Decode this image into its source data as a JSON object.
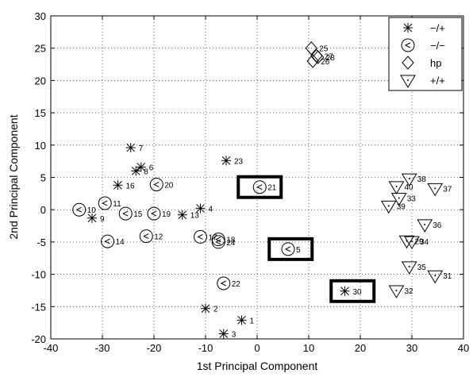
{
  "chart_data": {
    "type": "scatter",
    "title": "",
    "xlabel": "1st Principal Component",
    "ylabel": "2nd Principal Component",
    "xlim": [
      -40,
      40
    ],
    "ylim": [
      -20,
      30
    ],
    "xticks": [
      "-40",
      "-30",
      "-20",
      "-10",
      "0",
      "10",
      "20",
      "30",
      "40"
    ],
    "yticks": [
      "-20",
      "-15",
      "-10",
      "-5",
      "0",
      "5",
      "10",
      "15",
      "20",
      "25",
      "30"
    ],
    "grid": true,
    "legend_position": "top-right",
    "series": [
      {
        "name": "−/+",
        "marker": "x",
        "points": [
          {
            "x": -6.5,
            "y": -19.2,
            "label": "3"
          },
          {
            "x": -10,
            "y": -15.3,
            "label": "2"
          },
          {
            "x": -3,
            "y": -17.1,
            "label": "1"
          },
          {
            "x": -32,
            "y": -1.3,
            "label": "9"
          },
          {
            "x": -14.5,
            "y": -0.8,
            "label": "13"
          },
          {
            "x": -11,
            "y": 0.2,
            "label": "4"
          },
          {
            "x": -27,
            "y": 3.8,
            "label": "16"
          },
          {
            "x": -23.5,
            "y": 6,
            "label": "8"
          },
          {
            "x": -22.5,
            "y": 6.6,
            "label": "6"
          },
          {
            "x": -24.5,
            "y": 9.6,
            "label": "7"
          },
          {
            "x": -6,
            "y": 7.6,
            "label": "23"
          },
          {
            "x": 17,
            "y": -12.6,
            "label": "30"
          }
        ]
      },
      {
        "name": "−/−",
        "marker": "o",
        "points": [
          {
            "x": -34.5,
            "y": 0,
            "label": "10"
          },
          {
            "x": -29.5,
            "y": 1,
            "label": "11"
          },
          {
            "x": -25.5,
            "y": -0.6,
            "label": "15"
          },
          {
            "x": -20,
            "y": -0.6,
            "label": "19"
          },
          {
            "x": -19.5,
            "y": 3.9,
            "label": "20"
          },
          {
            "x": -21.5,
            "y": -4.1,
            "label": "12"
          },
          {
            "x": -29,
            "y": -4.9,
            "label": "14"
          },
          {
            "x": -11,
            "y": -4.2,
            "label": "17"
          },
          {
            "x": -7.5,
            "y": -4.6,
            "label": "18"
          },
          {
            "x": -7.5,
            "y": -5,
            "label": "24"
          },
          {
            "x": -6.5,
            "y": -11.4,
            "label": "22"
          },
          {
            "x": 0.5,
            "y": 3.5,
            "label": "21"
          },
          {
            "x": 6,
            "y": -6.1,
            "label": "5"
          }
        ]
      },
      {
        "name": "hp",
        "marker": "diamond",
        "points": [
          {
            "x": 10.5,
            "y": 25,
            "label": "25"
          },
          {
            "x": 11.5,
            "y": 23.8,
            "label": "27"
          },
          {
            "x": 11.8,
            "y": 23.6,
            "label": "28"
          },
          {
            "x": 10.8,
            "y": 23,
            "label": "26"
          }
        ]
      },
      {
        "name": "+/+",
        "marker": "triangle-down",
        "points": [
          {
            "x": 29.5,
            "y": 4.8,
            "label": "38"
          },
          {
            "x": 27,
            "y": 3.6,
            "label": "40"
          },
          {
            "x": 34.5,
            "y": 3.3,
            "label": "37"
          },
          {
            "x": 27.5,
            "y": 1.8,
            "label": "33"
          },
          {
            "x": 25.5,
            "y": 0.6,
            "label": "39"
          },
          {
            "x": 32.5,
            "y": -2.3,
            "label": "36"
          },
          {
            "x": 29,
            "y": -4.8,
            "label": "29"
          },
          {
            "x": 30,
            "y": -4.9,
            "label": "34"
          },
          {
            "x": 29.5,
            "y": -8.8,
            "label": "35"
          },
          {
            "x": 34.5,
            "y": -10.2,
            "label": "31"
          },
          {
            "x": 27,
            "y": -12.5,
            "label": "32"
          }
        ]
      }
    ],
    "annotations": [
      {
        "type": "box",
        "around_label": "21",
        "x": 0.5,
        "y": 3.5
      },
      {
        "type": "box",
        "around_label": "5",
        "x": 6.5,
        "y": -6.1
      },
      {
        "type": "box",
        "around_label": "30",
        "x": 18.5,
        "y": -12.6
      }
    ]
  }
}
